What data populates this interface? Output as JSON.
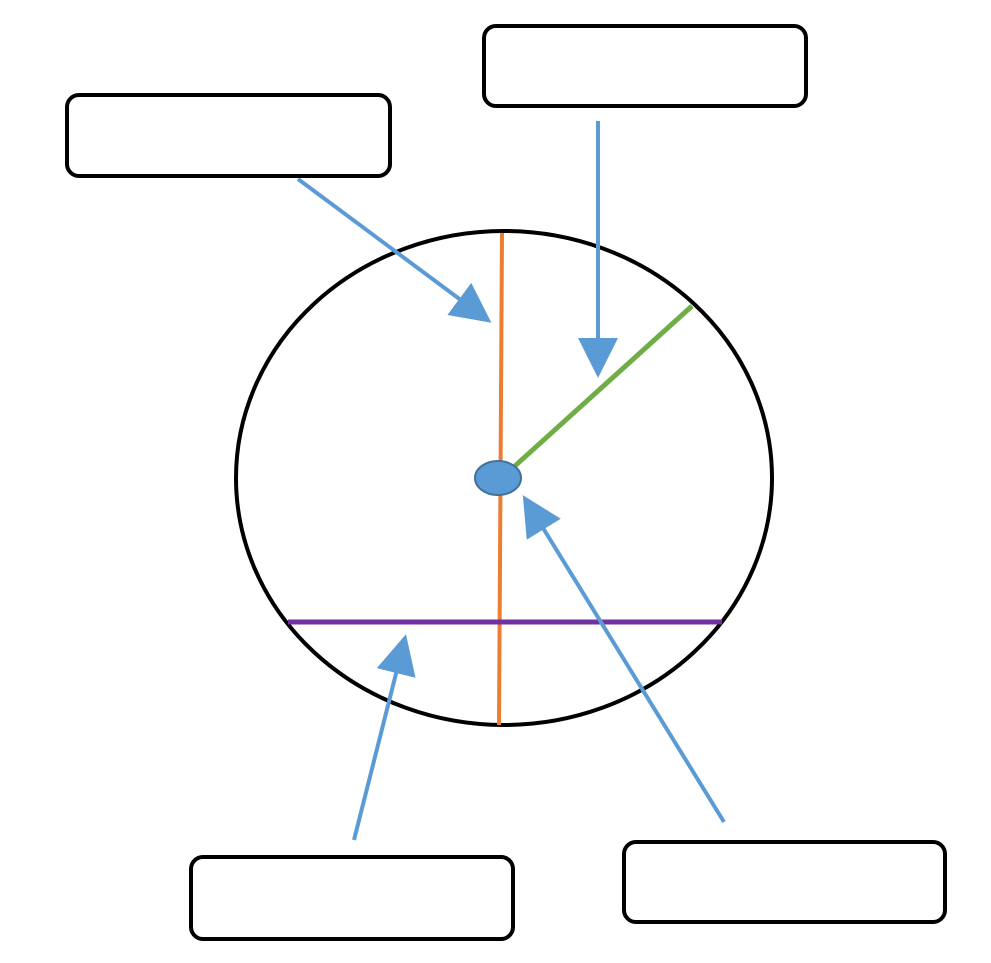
{
  "labels": [
    {
      "id": "top-left",
      "text": ""
    },
    {
      "id": "top-right",
      "text": ""
    },
    {
      "id": "bottom-left",
      "text": ""
    },
    {
      "id": "bottom-right",
      "text": ""
    }
  ],
  "colors": {
    "circle": "#000000",
    "diameter": "#ED7D31",
    "radius": "#70AD47",
    "chord": "#7030A0",
    "center": "#5B9BD5",
    "arrow": "#5B9BD5",
    "box_border": "#000000"
  }
}
